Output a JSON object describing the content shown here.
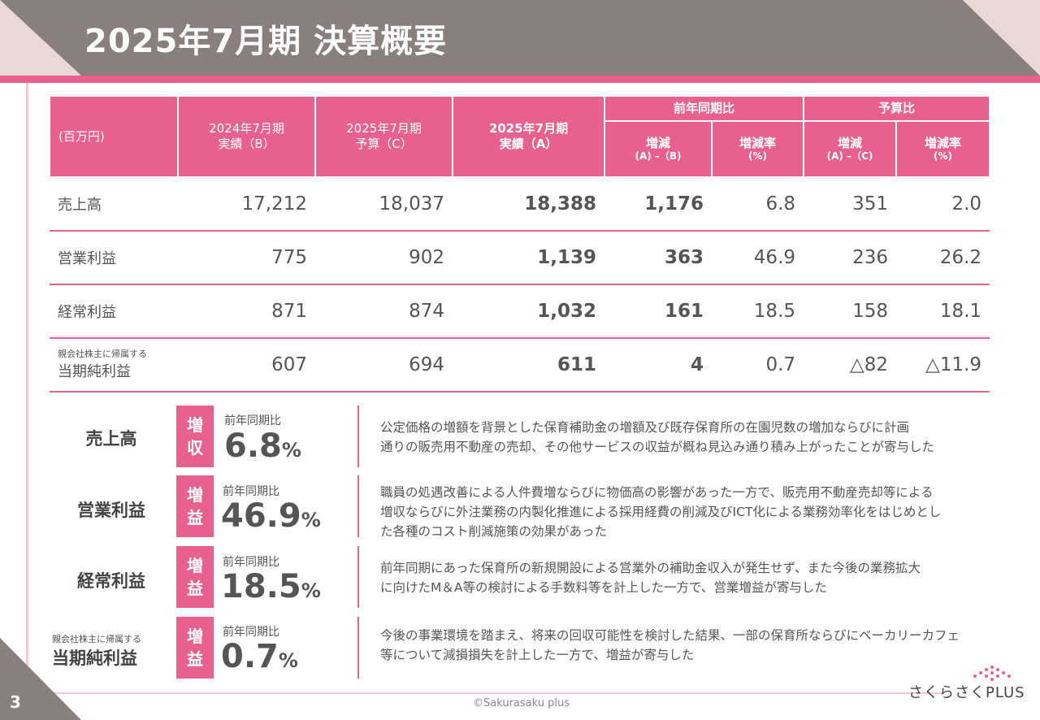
{
  "page": {
    "title": "2025年7月期 決算概要",
    "page_number": "3",
    "copyright": "©Sakurasaku plus",
    "logo_text": "さくらさくPLUS"
  },
  "table": {
    "unit": "(百万円)",
    "col_prev": [
      "2024年7月期",
      "実績（B）"
    ],
    "col_budget": [
      "2025年7月期",
      "予算（C）"
    ],
    "col_actual": [
      "2025年7月期",
      "実績（A）"
    ],
    "group_yoy": "前年同期比",
    "group_budget": "予算比",
    "sub_diff": "増減",
    "sub_diff_ab": "(A) –（B)",
    "sub_rate": "増減率",
    "sub_rate_unit": "(%)",
    "sub_diff_ac": "(A) –（C)",
    "rows": [
      {
        "label_small": "",
        "label": "売上高",
        "prev": "17,212",
        "budget": "18,037",
        "actual": "18,388",
        "yoy_diff": "1,176",
        "yoy_rate": "6.8",
        "bud_diff": "351",
        "bud_rate": "2.0"
      },
      {
        "label_small": "",
        "label": "営業利益",
        "prev": "775",
        "budget": "902",
        "actual": "1,139",
        "yoy_diff": "363",
        "yoy_rate": "46.9",
        "bud_diff": "236",
        "bud_rate": "26.2"
      },
      {
        "label_small": "",
        "label": "経常利益",
        "prev": "871",
        "budget": "874",
        "actual": "1,032",
        "yoy_diff": "161",
        "yoy_rate": "18.5",
        "bud_diff": "158",
        "bud_rate": "18.1"
      },
      {
        "label_small": "親会社株主に帰属する",
        "label": "当期純利益",
        "prev": "607",
        "budget": "694",
        "actual": "611",
        "yoy_diff": "4",
        "yoy_rate": "0.7",
        "bud_diff": "△82",
        "bud_rate": "△11.9"
      }
    ]
  },
  "summary": [
    {
      "label_small": "",
      "label": "売上高",
      "badge": [
        "増",
        "収"
      ],
      "cmp": "前年同期比",
      "value": "6.8",
      "unit": "%",
      "desc": [
        "公定価格の増額を背景とした保育補助金の増額及び既存保育所の在園児数の増加ならびに計画",
        "通りの販売用不動産の売却、その他サービスの収益が概ね見込み通り積み上がったことが寄与した"
      ]
    },
    {
      "label_small": "",
      "label": "営業利益",
      "badge": [
        "増",
        "益"
      ],
      "cmp": "前年同期比",
      "value": "46.9",
      "unit": "%",
      "desc": [
        "職員の処遇改善による人件費増ならびに物価高の影響があった一方で、販売用不動産売却等による",
        "増収ならびに外注業務の内製化推進による採用経費の削減及びICT化による業務効率化をはじめとし",
        "た各種のコスト削減施策の効果があった"
      ]
    },
    {
      "label_small": "",
      "label": "経常利益",
      "badge": [
        "増",
        "益"
      ],
      "cmp": "前年同期比",
      "value": "18.5",
      "unit": "%",
      "desc": [
        "前年同期にあった保育所の新規開設による営業外の補助金収入が発生せず、また今後の業務拡大",
        "に向けたM＆A等の検討による手数料等を計上した一方で、営業増益が寄与した"
      ]
    },
    {
      "label_small": "親会社株主に帰属する",
      "label": "当期純利益",
      "badge": [
        "増",
        "益"
      ],
      "cmp": "前年同期比",
      "value": "0.7",
      "unit": "%",
      "desc": [
        "今後の事業環境を踏まえ、将来の回収可能性を検討した結果、一部の保育所ならびにベーカリーカフェ",
        "等について減損損失を計上した一方で、増益が寄与した"
      ]
    }
  ],
  "colors": {
    "accent": "#e8608e",
    "header": "#8a7f7f",
    "light": "#e8d9d6"
  }
}
